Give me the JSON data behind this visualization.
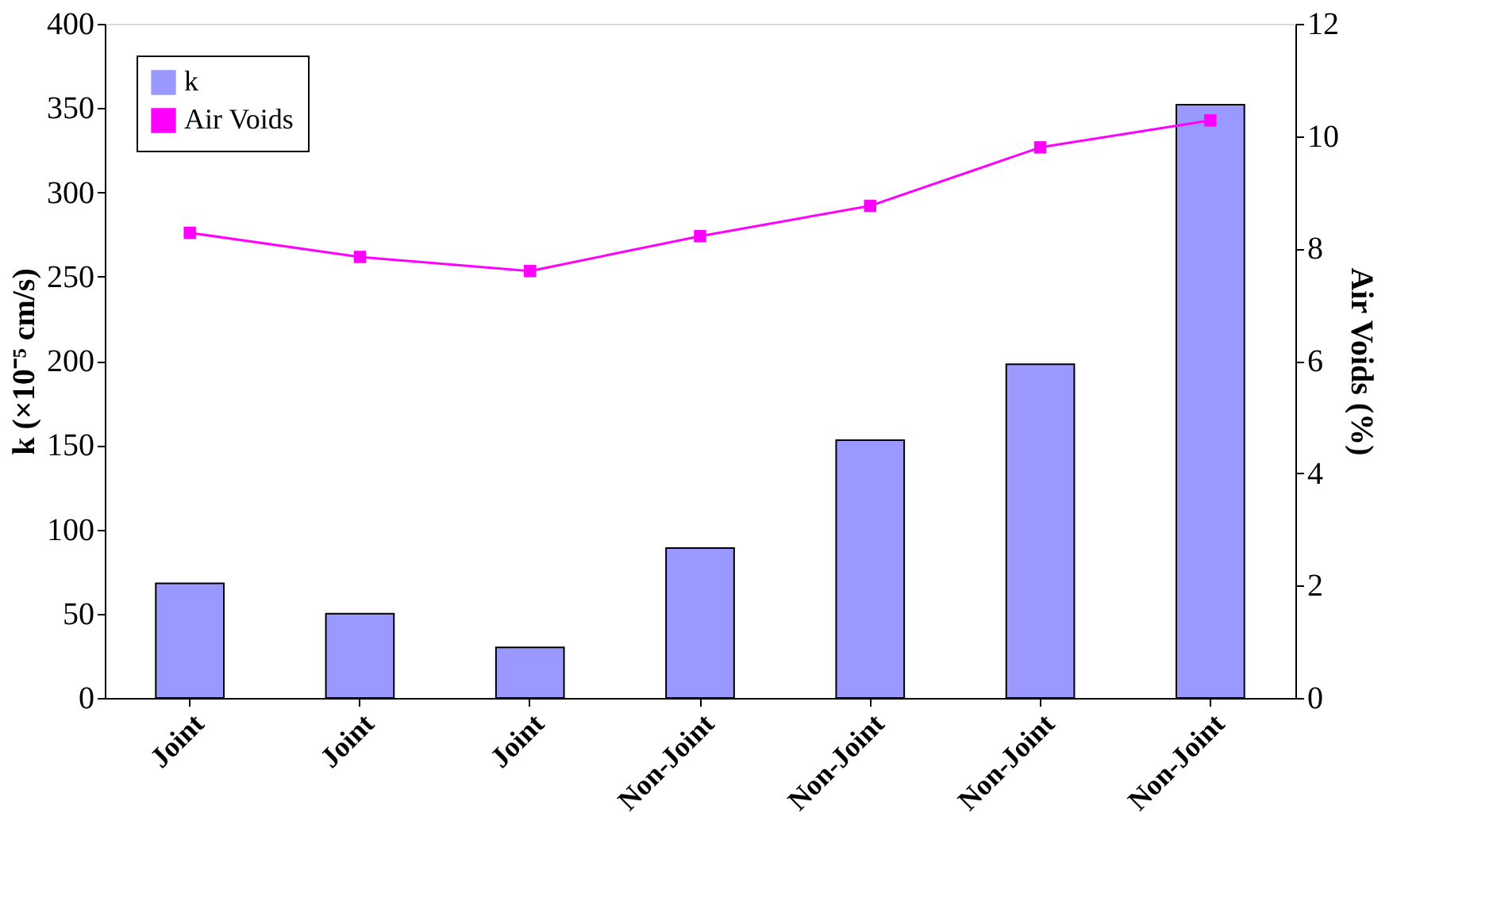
{
  "chart_data": {
    "type": "bar",
    "categories": [
      "Joint",
      "Joint",
      "Joint",
      "Non-Joint",
      "Non-Joint",
      "Non-Joint",
      "Non-Joint"
    ],
    "series": [
      {
        "name": "k",
        "color": "#9999ff",
        "values": [
          68,
          50,
          30,
          89,
          153,
          198,
          352
        ]
      },
      {
        "name": "Air Voids",
        "type": "line",
        "axis": "y2",
        "color": "#ff00ff",
        "marker": "square",
        "values": [
          8.28,
          7.85,
          7.6,
          8.22,
          8.76,
          9.8,
          10.28
        ]
      }
    ],
    "ylabel": "k (×10⁻⁵ cm/s)",
    "y2label": "Air Voids (%)",
    "ylim": [
      0,
      400
    ],
    "yticks": [
      0,
      50,
      100,
      150,
      200,
      250,
      300,
      350,
      400
    ],
    "y2lim": [
      0,
      12
    ],
    "y2ticks": [
      0,
      2,
      4,
      6,
      8,
      10,
      12
    ],
    "grid": false,
    "legend": "top left"
  }
}
